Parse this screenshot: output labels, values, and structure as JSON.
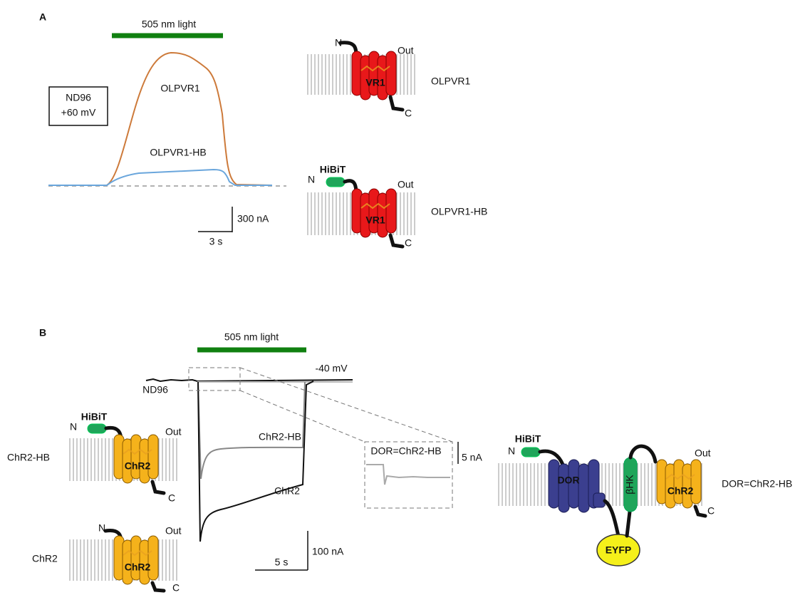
{
  "panel_a": {
    "label": "A",
    "light": "505 nm light",
    "condition": [
      "ND96",
      "+60 mV"
    ],
    "traces": [
      "OLPVR1",
      "OLPVR1-HB"
    ],
    "scale_y": "300 nA",
    "scale_x": "3 s",
    "constructs": [
      {
        "n": "N",
        "out": "Out",
        "core": "VR1",
        "c": "C",
        "name": "OLPVR1"
      },
      {
        "tag": "HiBiT",
        "n": "N",
        "out": "Out",
        "core": "VR1",
        "c": "C",
        "name": "OLPVR1-HB"
      }
    ]
  },
  "panel_b": {
    "label": "B",
    "light": "505 nm light",
    "voltage": "-40 mV",
    "condition": "ND96",
    "traces": [
      "ChR2-HB",
      "ChR2"
    ],
    "inset": {
      "title": "DOR=ChR2-HB",
      "scale": "5 nA"
    },
    "scale_y": "100 nA",
    "scale_x": "5 s",
    "constructs": [
      {
        "tag": "HiBiT",
        "n": "N",
        "out": "Out",
        "core": "ChR2",
        "c": "C",
        "name": "ChR2-HB"
      },
      {
        "n": "N",
        "out": "Out",
        "core": "ChR2",
        "c": "C",
        "name": "ChR2"
      },
      {
        "tag": "HiBiT",
        "n": "N",
        "receptor": "DOR",
        "fluor": "EYFP",
        "linker": "βHK",
        "out": "Out",
        "core": "ChR2",
        "c": "C",
        "name": "DOR=ChR2-HB"
      }
    ]
  }
}
